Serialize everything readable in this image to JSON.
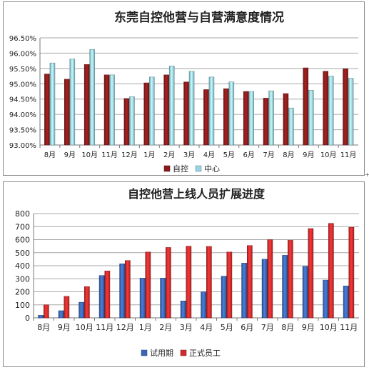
{
  "chart_data": [
    {
      "type": "bar",
      "title": "东莞自控他营与自营满意度情况",
      "categories": [
        "8月",
        "9月",
        "10月",
        "11月",
        "12月",
        "1月",
        "2月",
        "3月",
        "4月",
        "5月",
        "6月",
        "7月",
        "8月",
        "9月",
        "10月",
        "11月"
      ],
      "series": [
        {
          "name": "自控",
          "color": "#8b1a1a",
          "values": [
            95.32,
            95.15,
            95.63,
            95.29,
            94.52,
            95.03,
            95.29,
            95.06,
            94.81,
            94.84,
            94.75,
            94.53,
            94.68,
            95.52,
            95.41,
            95.49
          ]
        },
        {
          "name": "中心",
          "color": "#9ad3e6",
          "values": [
            95.68,
            95.81,
            96.12,
            95.29,
            94.58,
            95.22,
            95.58,
            95.41,
            95.22,
            95.06,
            94.75,
            94.77,
            94.21,
            94.79,
            95.25,
            95.18
          ]
        }
      ],
      "ylim": [
        93.0,
        96.5
      ],
      "yticks": [
        "93.00%",
        "93.50%",
        "94.00%",
        "94.50%",
        "95.00%",
        "95.50%",
        "96.00%",
        "96.50%"
      ],
      "grid": true,
      "legend": "bottom"
    },
    {
      "type": "bar",
      "title": "自控他营上线人员扩展进度",
      "categories": [
        "8月",
        "9月",
        "10月",
        "11月",
        "12月",
        "1月",
        "2月",
        "3月",
        "4月",
        "5月",
        "6月",
        "7月",
        "8月",
        "9月",
        "10月",
        "11月"
      ],
      "series": [
        {
          "name": "试用期",
          "color": "#3a67b5",
          "values": [
            20,
            55,
            120,
            325,
            415,
            305,
            305,
            130,
            200,
            320,
            420,
            450,
            480,
            395,
            290,
            245
          ]
        },
        {
          "name": "正式员工",
          "color": "#d02c2c",
          "values": [
            100,
            165,
            240,
            360,
            440,
            505,
            540,
            550,
            548,
            505,
            555,
            600,
            595,
            685,
            725,
            695
          ]
        }
      ],
      "ylim": [
        0,
        800
      ],
      "yticks": [
        "0",
        "100",
        "200",
        "300",
        "400",
        "500",
        "600",
        "700",
        "800"
      ],
      "grid": true,
      "legend": "bottom"
    }
  ],
  "stray_mark": "+"
}
